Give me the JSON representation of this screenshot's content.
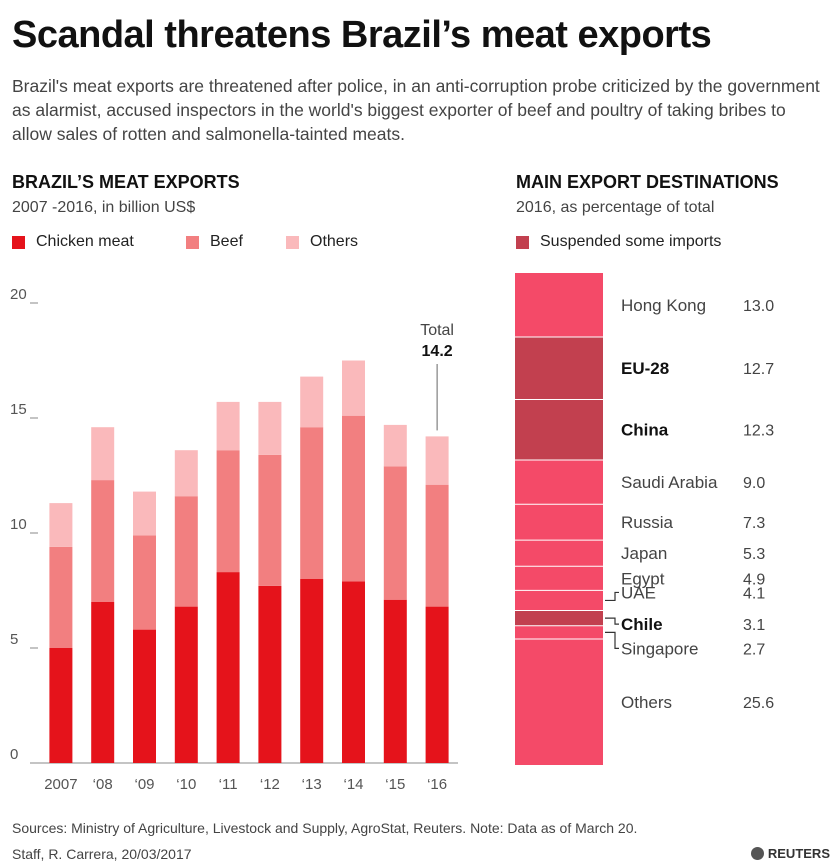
{
  "headline": "Scandal threatens Brazil’s meat exports",
  "intro": "Brazil's meat exports are threatened after police, in an anti-corruption probe criticized by the government as alarmist, accused inspectors in the world's biggest exporter of beef and poultry of taking bribes to allow sales of rotten and salmonella-tainted meats.",
  "left": {
    "title": "BRAZIL’S MEAT EXPORTS",
    "subtitle": "2007 -2016, in billion US$",
    "legend": [
      {
        "label": "Chicken meat",
        "color": "#e5131b"
      },
      {
        "label": "Beef",
        "color": "#f27f80"
      },
      {
        "label": "Others",
        "color": "#fab9bb"
      }
    ]
  },
  "right": {
    "title": "MAIN EXPORT DESTINATIONS",
    "subtitle": "2016, as percentage of total",
    "legend": [
      {
        "label": "Suspended some imports",
        "color": "#c2404f"
      }
    ]
  },
  "colors": {
    "destination": "#f44a68",
    "suspended": "#c2404f",
    "axis": "#888888"
  },
  "chart_data": [
    {
      "type": "bar",
      "stacked": true,
      "title": "BRAZIL’S MEAT EXPORTS",
      "subtitle": "2007 -2016, in billion US$",
      "categories": [
        "2007",
        "‘08",
        "‘09",
        "‘10",
        "‘11",
        "‘12",
        "‘13",
        "‘14",
        "‘15",
        "‘16"
      ],
      "series": [
        {
          "name": "Chicken meat",
          "color": "#e5131b",
          "values": [
            5.0,
            7.0,
            5.8,
            6.8,
            8.3,
            7.7,
            8.0,
            7.9,
            7.1,
            6.8
          ]
        },
        {
          "name": "Beef",
          "color": "#f27f80",
          "values": [
            4.4,
            5.3,
            4.1,
            4.8,
            5.3,
            5.7,
            6.6,
            7.2,
            5.8,
            5.3
          ]
        },
        {
          "name": "Others",
          "color": "#fab9bb",
          "values": [
            1.9,
            2.3,
            1.9,
            2.0,
            2.1,
            2.3,
            2.2,
            2.4,
            1.8,
            2.1
          ]
        }
      ],
      "yticks": [
        0,
        5,
        10,
        15,
        20
      ],
      "ylim": [
        0,
        20
      ],
      "annotation": {
        "category": "‘16",
        "label": "Total",
        "value": "14.2"
      }
    },
    {
      "type": "bar",
      "stacked": true,
      "title": "MAIN EXPORT DESTINATIONS",
      "subtitle": "2016, as percentage of total",
      "segments": [
        {
          "name": "Hong Kong",
          "value": 13.0,
          "label": "13.0",
          "suspended": false
        },
        {
          "name": "EU-28",
          "value": 12.7,
          "label": "12.7",
          "suspended": true
        },
        {
          "name": "China",
          "value": 12.3,
          "label": "12.3",
          "suspended": true
        },
        {
          "name": "Saudi Arabia",
          "value": 9.0,
          "label": "9.0",
          "suspended": false
        },
        {
          "name": "Russia",
          "value": 7.3,
          "label": "7.3",
          "suspended": false
        },
        {
          "name": "Japan",
          "value": 5.3,
          "label": "5.3",
          "suspended": false
        },
        {
          "name": "Egypt",
          "value": 4.9,
          "label": "4.9",
          "suspended": false
        },
        {
          "name": "UAE",
          "value": 4.1,
          "label": "4.1",
          "suspended": false
        },
        {
          "name": "Chile",
          "value": 3.1,
          "label": "3.1",
          "suspended": true
        },
        {
          "name": "Singapore",
          "value": 2.7,
          "label": "2.7",
          "suspended": false
        },
        {
          "name": "Others",
          "value": 25.6,
          "label": "25.6",
          "suspended": false
        }
      ]
    }
  ],
  "footer": {
    "sources": "Sources: Ministry of Agriculture, Livestock and Supply, AgroStat, Reuters.  Note: Data as of March 20.",
    "credit": "Staff, R. Carrera,  20/03/2017",
    "brand": "REUTERS"
  }
}
